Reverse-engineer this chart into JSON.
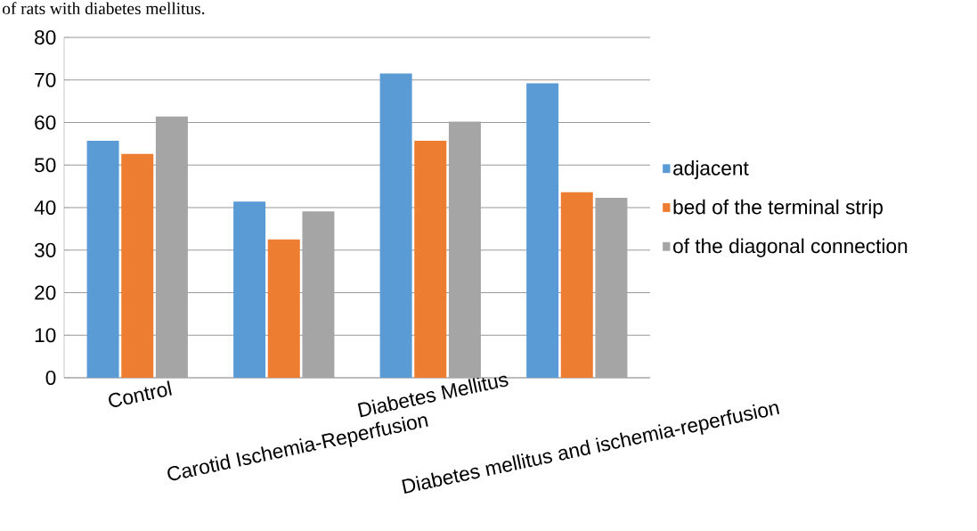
{
  "chart_data": {
    "type": "bar",
    "annotations": [
      "of rats with diabetes mellitus."
    ],
    "categories": [
      "Control",
      "Carotid Ischemia-Reperfusion",
      "Diabetes Mellitus",
      "Diabetes mellitus and ischemia-reperfusion"
    ],
    "series": [
      {
        "name": "adjacent",
        "color": "#5b9bd5",
        "values": [
          55.7,
          41.4,
          71.5,
          69.2
        ]
      },
      {
        "name": "bed of the terminal strip",
        "color": "#ed7d31",
        "values": [
          52.6,
          32.5,
          55.7,
          43.6
        ]
      },
      {
        "name": "of the diagonal connection",
        "color": "#a5a5a5",
        "values": [
          61.4,
          39.1,
          60.2,
          42.3
        ]
      }
    ],
    "ylim": [
      0,
      80
    ],
    "yticks": [
      0,
      10,
      20,
      30,
      40,
      50,
      60,
      70,
      80
    ],
    "grid": "y",
    "legend": "right"
  }
}
